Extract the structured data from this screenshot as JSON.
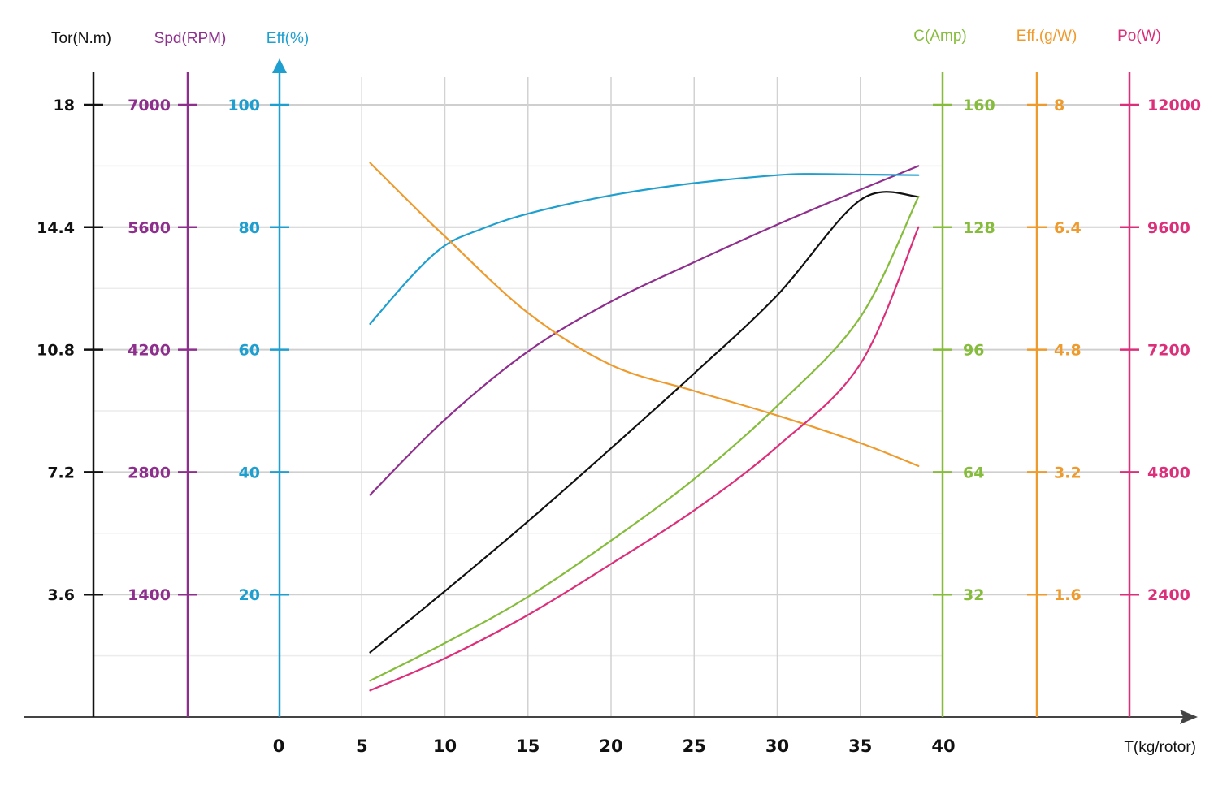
{
  "chart_data": {
    "type": "line",
    "title": "",
    "x_axis": {
      "label": "T(kg/rotor)",
      "ticks": [
        0,
        5,
        10,
        15,
        20,
        25,
        30,
        35,
        40
      ],
      "range": [
        0,
        40
      ]
    },
    "y_axes": [
      {
        "id": "tor",
        "label": "Tor(N.m)",
        "color": "#111111",
        "side": "left",
        "ticks": [
          "3.6",
          "7.2",
          "10.8",
          "14.4",
          "18"
        ],
        "range": [
          0,
          18
        ]
      },
      {
        "id": "spd",
        "label": "Spd(RPM)",
        "color": "#8e2f8e",
        "side": "left",
        "ticks": [
          "1400",
          "2800",
          "4200",
          "5600",
          "7000"
        ],
        "range": [
          0,
          7000
        ]
      },
      {
        "id": "eff",
        "label": "Eff(%)",
        "color": "#1f9fcf",
        "side": "left",
        "ticks": [
          "20",
          "40",
          "60",
          "80",
          "100"
        ],
        "range": [
          0,
          100
        ]
      },
      {
        "id": "cur",
        "label": "C(Amp)",
        "color": "#86bc3c",
        "side": "right",
        "ticks": [
          "32",
          "64",
          "96",
          "128",
          "160"
        ],
        "range": [
          0,
          160
        ]
      },
      {
        "id": "effg",
        "label": "Eff.(g/W)",
        "color": "#ee9a2c",
        "side": "right",
        "ticks": [
          "1.6",
          "3.2",
          "4.8",
          "6.4",
          "8"
        ],
        "range": [
          0,
          8
        ]
      },
      {
        "id": "pow",
        "label": "Po(W)",
        "color": "#dc2f7a",
        "side": "right",
        "ticks": [
          "2400",
          "4800",
          "7200",
          "9600",
          "12000"
        ],
        "range": [
          0,
          12000
        ]
      }
    ],
    "series": [
      {
        "name": "Torque",
        "axis": "tor",
        "color": "#111111",
        "x": [
          5.5,
          10,
          15,
          20,
          25,
          30,
          35,
          38.5
        ],
        "y": [
          1.9,
          3.7,
          5.75,
          7.9,
          10.1,
          12.4,
          15.2,
          15.3
        ]
      },
      {
        "name": "Speed",
        "axis": "spd",
        "color": "#8e2f8e",
        "x": [
          5.5,
          10,
          15,
          20,
          25,
          30,
          35,
          38.5
        ],
        "y": [
          2540,
          3400,
          4180,
          4750,
          5200,
          5630,
          6030,
          6300
        ]
      },
      {
        "name": "Efficiency",
        "axis": "eff",
        "color": "#1f9fcf",
        "x": [
          5.5,
          8,
          10,
          12,
          15,
          20,
          25,
          30,
          32,
          35,
          38.5
        ],
        "y": [
          64.2,
          72.0,
          77.0,
          79.5,
          82.2,
          85.2,
          87.2,
          88.5,
          88.7,
          88.6,
          88.5
        ]
      },
      {
        "name": "Current",
        "axis": "cur",
        "color": "#86bc3c",
        "x": [
          5.5,
          10,
          15,
          20,
          25,
          30,
          35,
          38.5
        ],
        "y": [
          9.5,
          19.3,
          31.4,
          46.1,
          62.2,
          81.3,
          104.5,
          136
        ]
      },
      {
        "name": "Eff. g/W",
        "axis": "effg",
        "color": "#ee9a2c",
        "x": [
          5.5,
          8,
          10,
          15,
          20,
          25,
          30,
          35,
          38.5
        ],
        "y": [
          7.24,
          6.7,
          6.28,
          5.28,
          4.6,
          4.26,
          3.94,
          3.58,
          3.28
        ]
      },
      {
        "name": "Power",
        "axis": "pow",
        "color": "#dc2f7a",
        "x": [
          5.5,
          10,
          15,
          20,
          25,
          30,
          35,
          38.5
        ],
        "y": [
          520,
          1150,
          2000,
          3000,
          4050,
          5300,
          6920,
          9600
        ]
      }
    ]
  }
}
